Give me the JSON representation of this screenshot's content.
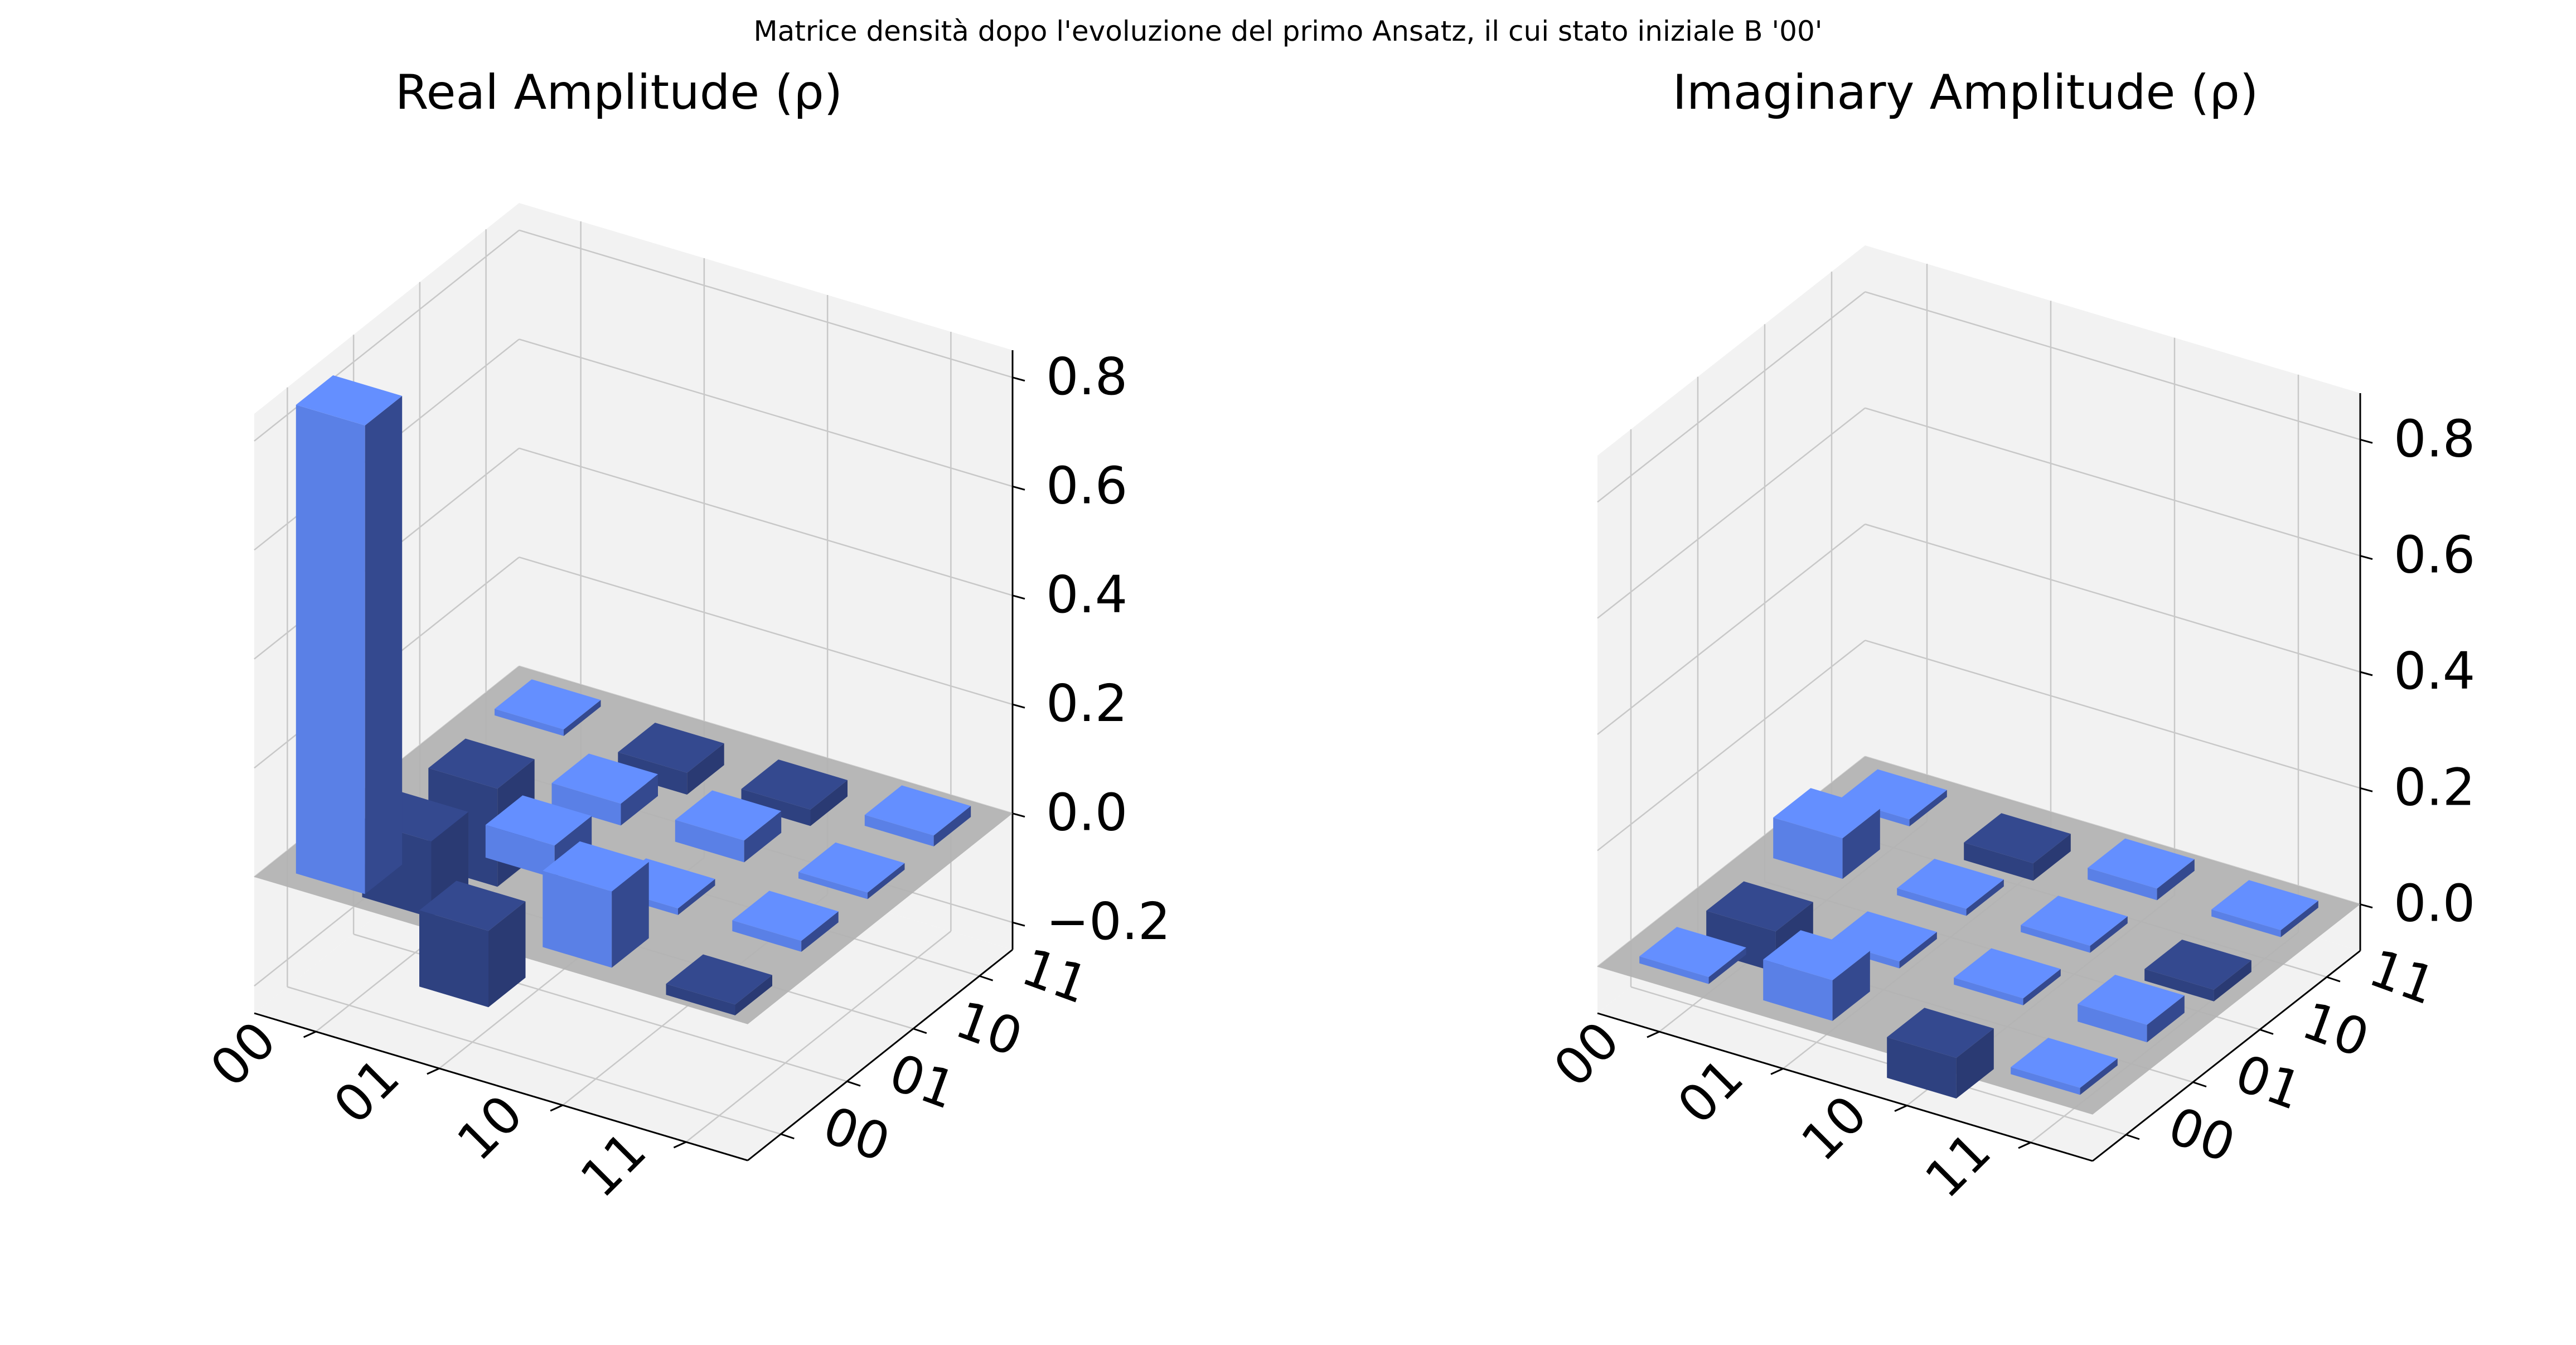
{
  "figure": {
    "title": "Matrice densità dopo l'evoluzione del primo Ansatz, il cui stato iniziale B '00'"
  },
  "colors": {
    "positive_bar": "#648fff",
    "negative_bar": "#34498f",
    "plane": "#b3b3b3",
    "pane_fill": "#f2f2f2",
    "grid": "#c8c8c8"
  },
  "chart_data": [
    {
      "type": "bar3d",
      "title": "Real Amplitude (ρ)",
      "row_labels": [
        "00",
        "01",
        "10",
        "11"
      ],
      "col_labels": [
        "00",
        "01",
        "10",
        "11"
      ],
      "zlim": [
        -0.25,
        0.85
      ],
      "z_ticks": [
        "0.8",
        "0.6",
        "0.4",
        "0.2",
        "0.0",
        "−0.2"
      ],
      "z_tick_values": [
        0.8,
        0.6,
        0.4,
        0.2,
        0.0,
        -0.2
      ],
      "values": [
        [
          0.86,
          -0.14,
          -0.18,
          0.0
        ],
        [
          -0.14,
          0.06,
          0.04,
          -0.04
        ],
        [
          0.14,
          0.0,
          0.04,
          -0.03
        ],
        [
          -0.02,
          0.02,
          0.0,
          0.02
        ]
      ]
    },
    {
      "type": "bar3d",
      "title": "Imaginary Amplitude (ρ)",
      "row_labels": [
        "00",
        "01",
        "10",
        "11"
      ],
      "col_labels": [
        "00",
        "01",
        "10",
        "11"
      ],
      "zlim": [
        -0.08,
        0.88
      ],
      "z_ticks": [
        "0.8",
        "0.6",
        "0.4",
        "0.2",
        "0.0"
      ],
      "z_tick_values": [
        0.8,
        0.6,
        0.4,
        0.2,
        0.0
      ],
      "values": [
        [
          0.0,
          -0.07,
          0.07,
          0.0
        ],
        [
          0.07,
          0.0,
          0.0,
          -0.03
        ],
        [
          -0.07,
          0.0,
          0.0,
          0.02
        ],
        [
          0.0,
          0.03,
          -0.02,
          0.0
        ]
      ]
    }
  ]
}
